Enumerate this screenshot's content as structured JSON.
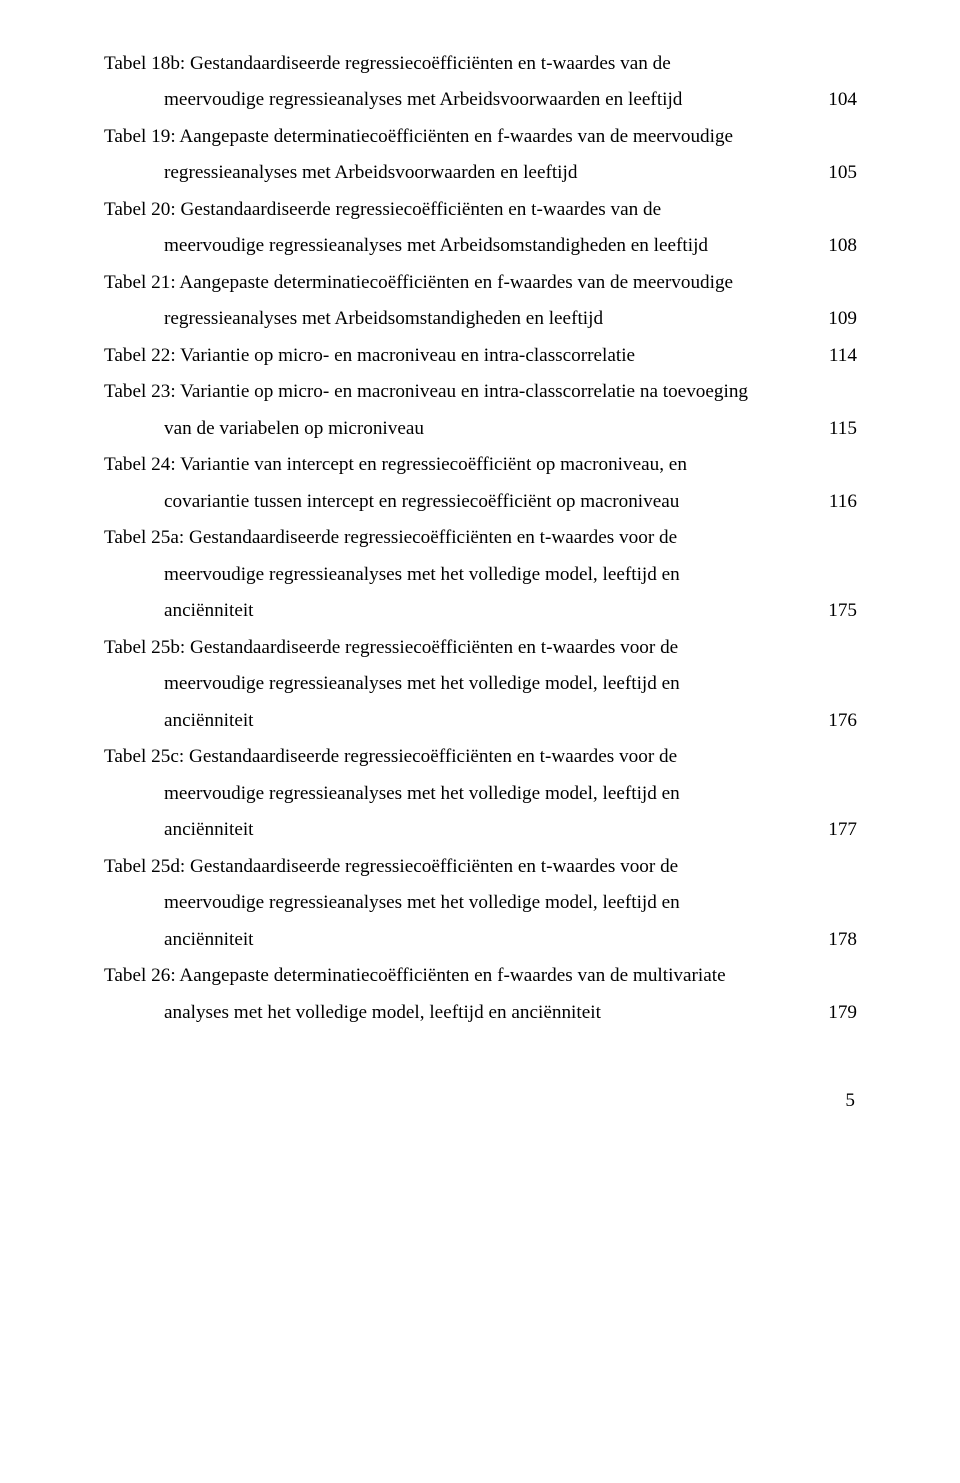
{
  "entries": [
    {
      "first": "Tabel 18b: Gestandaardiseerde regressiecoëfficiënten en t-waardes van de",
      "indent": "meervoudige regressieanalyses met Arbeidsvoorwaarden en leeftijd",
      "page": "104"
    },
    {
      "first": "Tabel 19: Aangepaste determinatiecoëfficiënten en f-waardes van de meervoudige",
      "indent": "regressieanalyses met Arbeidsvoorwaarden en leeftijd",
      "page": "105"
    },
    {
      "first": "Tabel 20: Gestandaardiseerde regressiecoëfficiënten en t-waardes van de",
      "indent": "meervoudige regressieanalyses met Arbeidsomstandigheden en leeftijd",
      "page": "108"
    },
    {
      "first": "Tabel 21: Aangepaste determinatiecoëfficiënten en f-waardes van de meervoudige",
      "indent": "regressieanalyses met Arbeidsomstandigheden en leeftijd",
      "page": "109"
    },
    {
      "first": "Tabel 22: Variantie op micro- en macroniveau en intra-classcorrelatie",
      "indent": null,
      "page": "114"
    },
    {
      "first": "Tabel 23: Variantie op micro- en macroniveau en intra-classcorrelatie na toevoeging",
      "indent": "van de variabelen op microniveau",
      "page": "115"
    },
    {
      "first": "Tabel 24: Variantie van intercept en regressiecoëfficiënt op macroniveau, en",
      "indent": "covariantie tussen intercept en regressiecoëfficiënt op macroniveau",
      "page": "116"
    },
    {
      "first": "Tabel 25a: Gestandaardiseerde regressiecoëfficiënten en t-waardes voor de",
      "indent2": "meervoudige regressieanalyses met het volledige model, leeftijd en",
      "indent": "anciënniteit",
      "page": "175"
    },
    {
      "first": "Tabel 25b: Gestandaardiseerde regressiecoëfficiënten en t-waardes voor de",
      "indent2": "meervoudige regressieanalyses met het volledige model, leeftijd en",
      "indent": "anciënniteit",
      "page": "176"
    },
    {
      "first": "Tabel 25c: Gestandaardiseerde regressiecoëfficiënten en t-waardes voor de",
      "indent2": "meervoudige regressieanalyses met het volledige model, leeftijd en",
      "indent": "anciënniteit",
      "page": "177"
    },
    {
      "first": "Tabel 25d: Gestandaardiseerde regressiecoëfficiënten en t-waardes voor de",
      "indent2": "meervoudige regressieanalyses met het volledige model, leeftijd en",
      "indent": "anciënniteit",
      "page": "178"
    },
    {
      "first": "Tabel 26: Aangepaste determinatiecoëfficiënten en f-waardes van de multivariate",
      "indent": "analyses met het volledige model, leeftijd en anciënniteit",
      "page": "179"
    }
  ],
  "footer_page": "5"
}
